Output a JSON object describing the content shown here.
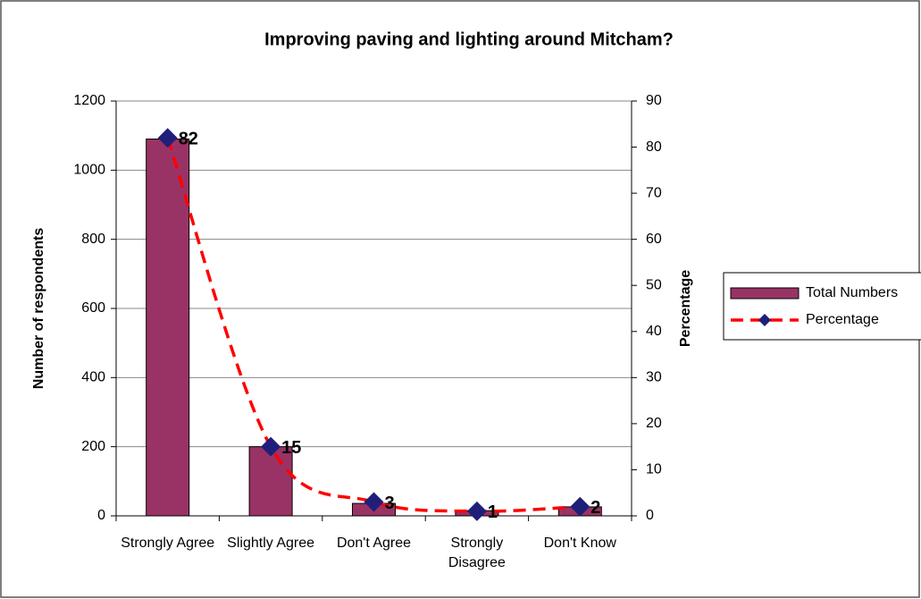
{
  "chart_data": {
    "type": "bar_line",
    "title": "Improving paving and lighting around Mitcham?",
    "categories": [
      "Strongly Agree",
      "Slightly Agree",
      "Don't Agree",
      "Strongly Disagree",
      "Don't Know"
    ],
    "series": [
      {
        "name": "Total Numbers",
        "type": "bar",
        "color": "#993366",
        "values": [
          1090,
          200,
          36,
          15,
          26
        ]
      },
      {
        "name": "Percentage",
        "type": "line",
        "axis": "y2",
        "color": "#ff0000",
        "marker_color": "#1f1f7a",
        "values": [
          82,
          15,
          3,
          1,
          2
        ]
      }
    ],
    "ylabel": "Number of respondents",
    "y2label": "Percentage",
    "ylim": [
      0,
      1200
    ],
    "yticks": [
      0,
      200,
      400,
      600,
      800,
      1000,
      1200
    ],
    "y2lim": [
      0,
      90
    ],
    "y2ticks": [
      0,
      10,
      20,
      30,
      40,
      50,
      60,
      70,
      80,
      90
    ],
    "grid": true,
    "legend": "right"
  }
}
